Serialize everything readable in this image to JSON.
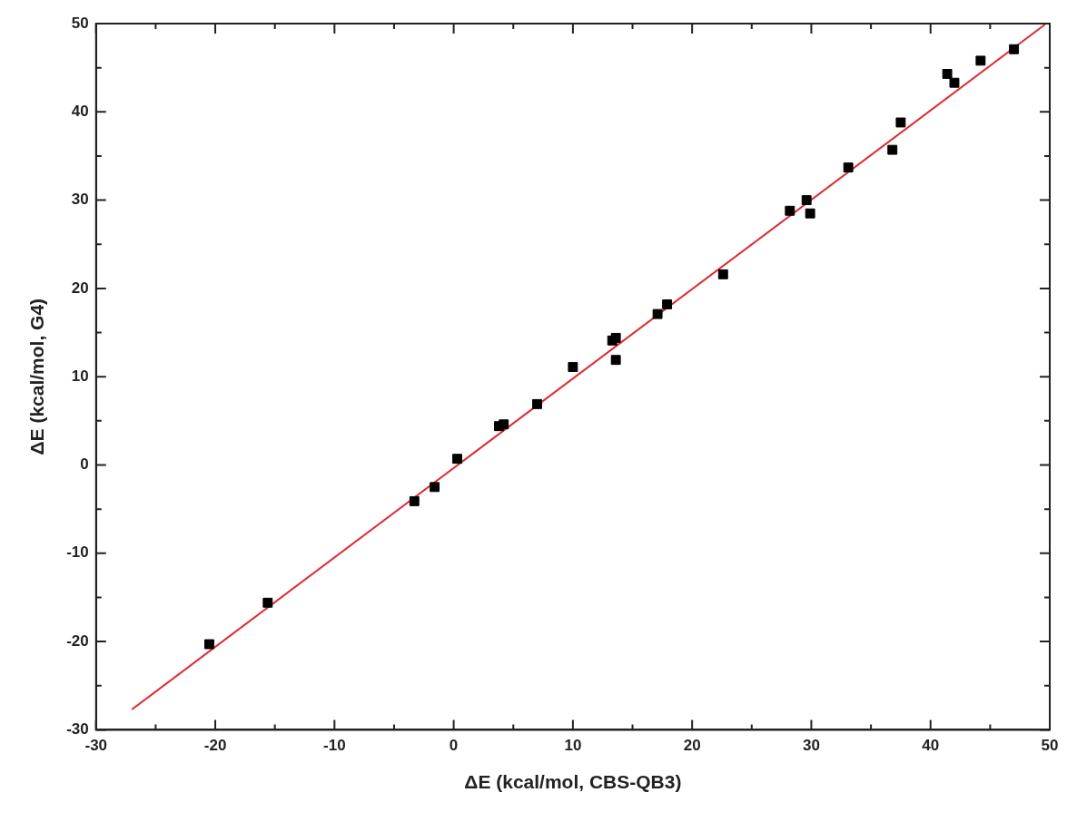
{
  "chart_data": {
    "type": "scatter",
    "xlabel": "ΔE (kcal/mol, CBS-QB3)",
    "ylabel": "ΔE (kcal/mol, G4)",
    "xlim": [
      -30,
      50
    ],
    "ylim": [
      -30,
      50
    ],
    "xticks": [
      -30,
      {
        "value": -25,
        "label": null
      },
      -20,
      {
        "value": -15,
        "label": null
      },
      -10,
      {
        "value": -5,
        "label": null
      },
      0,
      {
        "value": 5,
        "label": null
      },
      10,
      {
        "value": 15,
        "label": null
      },
      20,
      {
        "value": 25,
        "label": null
      },
      30,
      {
        "value": 35,
        "label": null
      },
      40,
      {
        "value": 45,
        "label": null
      },
      50
    ],
    "yticks": [
      -30,
      {
        "value": -25,
        "label": null
      },
      -20,
      {
        "value": -15,
        "label": null
      },
      -10,
      {
        "value": -5,
        "label": null
      },
      0,
      {
        "value": 5,
        "label": null
      },
      10,
      {
        "value": 15,
        "label": null
      },
      20,
      {
        "value": 25,
        "label": null
      },
      30,
      {
        "value": 35,
        "label": null
      },
      40,
      {
        "value": 45,
        "label": null
      },
      50
    ],
    "marker": "square",
    "legend": false,
    "series": [
      {
        "type": "scatter",
        "color": "#000000",
        "x": [
          -20.5,
          -15.6,
          -3.3,
          -1.6,
          0.3,
          3.8,
          4.2,
          7.0,
          10.0,
          13.3,
          13.6,
          13.6,
          17.1,
          17.9,
          22.6,
          28.2,
          29.6,
          29.9,
          33.1,
          36.8,
          37.5,
          41.4,
          42.0,
          44.2,
          47.0
        ],
        "values": [
          -20.3,
          -15.6,
          -4.1,
          -2.5,
          0.7,
          4.4,
          4.6,
          6.9,
          11.1,
          14.1,
          14.4,
          11.9,
          17.1,
          18.2,
          21.6,
          28.8,
          30.0,
          28.5,
          33.7,
          35.7,
          38.8,
          44.3,
          43.3,
          45.8,
          47.1
        ]
      },
      {
        "type": "line",
        "color": "#e8242a",
        "marker": "none",
        "x": [
          -27,
          49.6
        ],
        "values": [
          -27.7,
          49.9
        ]
      }
    ]
  }
}
